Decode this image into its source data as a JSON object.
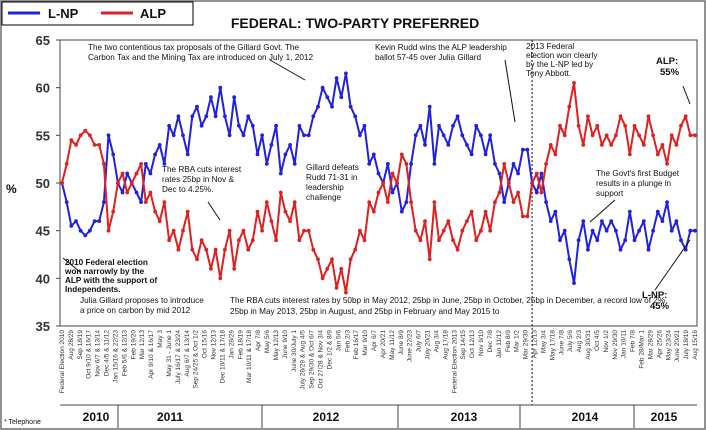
{
  "chart_data": {
    "type": "line",
    "title": "FEDERAL: TWO-PARTY PREFERRED",
    "ylabel": "%",
    "ylim": [
      35,
      65
    ],
    "yticks": [
      35,
      40,
      45,
      50,
      55,
      60,
      65
    ],
    "grid": false,
    "legend_position": "top-left",
    "footnote": "* Telephone",
    "series": [
      {
        "name": "L-NP",
        "color": "#2020e0",
        "values": [
          50,
          48,
          45.5,
          46,
          45,
          44.5,
          45,
          46,
          46,
          48,
          55,
          53,
          50,
          49,
          51,
          50,
          49,
          48,
          52,
          51,
          53,
          54,
          52,
          56,
          55,
          57,
          55,
          53,
          57,
          58,
          56,
          57,
          59,
          57,
          60,
          57,
          55,
          59,
          56,
          55,
          57,
          56,
          53,
          55,
          52,
          54,
          56,
          51,
          53,
          54,
          52,
          56,
          55,
          55,
          57,
          58,
          60,
          59,
          58,
          61,
          59,
          61.5,
          58,
          57,
          55,
          56,
          52,
          53,
          51,
          50,
          52,
          49,
          50,
          47,
          48,
          52,
          55,
          56,
          54,
          58,
          52,
          56,
          55,
          54,
          56,
          57,
          55,
          54,
          53,
          56,
          55,
          53,
          55,
          52,
          51,
          48,
          50,
          52,
          51,
          53.5,
          53.5,
          50,
          49,
          51,
          48,
          46,
          47,
          44,
          45,
          42,
          39.5,
          44,
          46,
          43,
          45,
          44,
          46,
          45,
          46,
          45,
          43,
          44,
          47,
          44,
          45,
          46,
          43,
          45,
          47,
          46,
          48,
          45,
          46,
          44,
          43,
          45,
          45
        ]
      },
      {
        "name": "ALP",
        "color": "#e02020",
        "values": [
          50,
          52,
          54.5,
          54,
          55,
          55.5,
          55,
          54,
          54,
          52,
          45,
          47,
          50,
          51,
          49,
          50,
          51,
          52,
          48,
          49,
          47,
          46,
          48,
          44,
          45,
          43,
          45,
          47,
          43,
          42,
          44,
          43,
          41,
          43,
          40,
          43,
          45,
          41,
          44,
          45,
          43,
          44,
          47,
          45,
          48,
          46,
          44,
          49,
          47,
          46,
          48,
          44,
          45,
          45,
          43,
          42,
          40,
          41,
          42,
          39,
          41,
          38.5,
          42,
          43,
          45,
          44,
          48,
          47,
          49,
          50,
          48,
          51,
          50,
          53,
          52,
          48,
          45,
          44,
          46,
          42,
          48,
          44,
          45,
          46,
          44,
          43,
          45,
          46,
          47,
          44,
          45,
          47,
          45,
          48,
          49,
          52,
          50,
          48,
          49,
          46.5,
          46.5,
          50,
          51,
          49,
          52,
          54,
          53,
          56,
          55,
          58,
          60.5,
          56,
          54,
          57,
          55,
          56,
          54,
          55,
          54,
          55,
          57,
          56,
          53,
          56,
          55,
          54,
          57,
          55,
          53,
          54,
          52,
          55,
          54,
          56,
          57,
          55,
          55
        ]
      }
    ],
    "end_labels": [
      "ALP:\n55%",
      "L-NP:\n45%"
    ],
    "year_labels": [
      "2010",
      "2011",
      "2012",
      "2013",
      "2014",
      "2015"
    ],
    "divider_after_index": 101,
    "annotations": [
      "The two contentious tax proposals of the Gillard Govt. The Carbon Tax and the Mining Tax are introduced on July 1, 2012",
      "Kevin Rudd wins the ALP leadership ballot 57-45 over Julia Gillard",
      "2013 Federal election won clearly by the L-NP led by Tony Abbott.",
      "The RBA cuts interest rates 25bp in Nov & Dec to 4.25%.",
      "Gillard defeats Rudd 71-31 in leadership challenge",
      "The Govt's first Budget results in a plunge in support",
      "2010 Federal election won narrowly by the ALP with the support of Independents.",
      "Julia Gillard proposes to introduce a price on carbon by mid 2012",
      "The RBA cuts interest rates by 50bp in May 2012, 25bp in June, 25bp in October, 25bp in December, a record low of 2%",
      "25bp in May 2013, 25bp in August, and 25bp in February and May 2015 to"
    ],
    "x_tick_labels": [
      "Federal Election 2010",
      "Aug 28/29",
      "Sep 18/19",
      "Oct 9/10 & 16/17",
      "Nov 6/7 & 13/14",
      "Dec 4/5 & 11/12",
      "Jan 15/16 & 22/23",
      "Feb 5/6 & 12/13",
      "Feb 19/20",
      "Mar 12/13",
      "Apr 9/10 & 16/17",
      "May 3",
      "May 31 - June 1",
      "July 16/17 & 23/24",
      "Aug 6/7 & 13/14",
      "Sep 24/25 & Oct 1/2",
      "Oct 15/16",
      "Nov 12/13",
      "Dec 10/11 & 17/18",
      "Jan 28/29",
      "Feb 18/19",
      "Mar 10/11 & 17/18",
      "Apr 7/8",
      "May 5/6",
      "May 12/13",
      "June 9/10",
      "June 30/July 1",
      "July 28/29 & Aug 4/5",
      "Sep 29/30 & Oct 6/7",
      "Oct 27/28 & Nov 3/4",
      "Dec 1/2 & 8/9",
      "Jan 5/6",
      "Feb 2/3",
      "Feb 16/17",
      "Mar 9/10",
      "Apr 6/7",
      "Apr 20/21",
      "May 11/12",
      "June 8/9",
      "June 22/23",
      "July 6/7",
      "July 20/21",
      "Aug 3/4",
      "Aug 17/18",
      "Federal Election 2013",
      "Sep 14/15",
      "Oct 12/13",
      "Nov 9/10",
      "Dec 7/8",
      "Jan 11/12",
      "Feb 8/9",
      "Mar 1/2",
      "Mar 29/30",
      "Apr 12/13",
      "May 3/4",
      "May 17/18",
      "June 7/8",
      "July 5/6",
      "Aug 2/3",
      "Aug 30/31",
      "Oct 4/5",
      "Nov 1/2",
      "Nov 29/30",
      "Jan 10/11",
      "Feb 7/8",
      "Feb 28/Mar 1",
      "Mar 28/29",
      "Apr 25/26",
      "May 23/24",
      "June 20/21",
      "July 18/19",
      "Aug 15/16"
    ]
  }
}
